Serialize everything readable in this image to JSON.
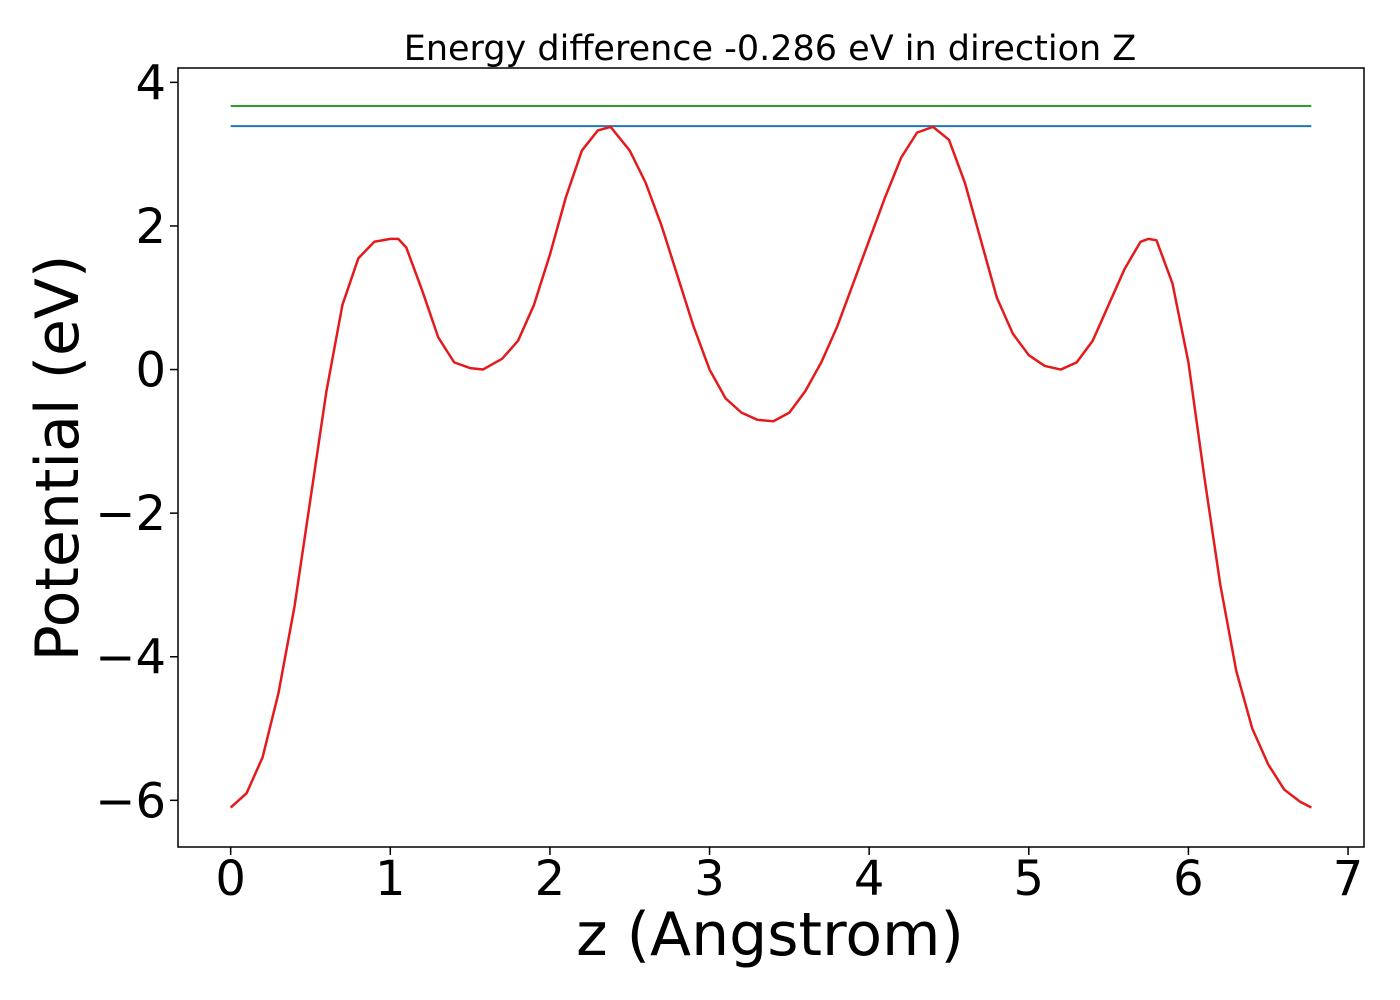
{
  "chart_data": {
    "type": "line",
    "title": "Energy difference -0.286 eV in direction Z",
    "xlabel": "z (Angstrom)",
    "ylabel": "Potential (eV)",
    "xlim": [
      -0.33,
      7.1
    ],
    "ylim": [
      -6.65,
      4.2
    ],
    "x_ticks": [
      0,
      1,
      2,
      3,
      4,
      5,
      6,
      7
    ],
    "y_ticks": [
      -6,
      -4,
      -2,
      0,
      2,
      4
    ],
    "x_tick_labels": [
      "0",
      "1",
      "2",
      "3",
      "4",
      "5",
      "6",
      "7"
    ],
    "y_tick_labels": [
      "−6",
      "−4",
      "−2",
      "0",
      "2",
      "4"
    ],
    "grid": false,
    "series": [
      {
        "color": "#2ca02c",
        "style": "horizontal",
        "x": [
          0,
          6.77
        ],
        "values": [
          3.67,
          3.67
        ]
      },
      {
        "color": "#1f77b4",
        "style": "horizontal",
        "x": [
          0,
          6.77
        ],
        "values": [
          3.39,
          3.39
        ]
      },
      {
        "color": "#e41a1c",
        "style": "curve",
        "x": [
          0.0,
          0.1,
          0.2,
          0.3,
          0.4,
          0.5,
          0.6,
          0.7,
          0.8,
          0.9,
          1.0,
          1.05,
          1.1,
          1.2,
          1.3,
          1.4,
          1.5,
          1.58,
          1.7,
          1.8,
          1.9,
          2.0,
          2.1,
          2.2,
          2.3,
          2.38,
          2.5,
          2.6,
          2.7,
          2.8,
          2.9,
          3.0,
          3.1,
          3.2,
          3.3,
          3.4,
          3.5,
          3.6,
          3.7,
          3.8,
          3.9,
          4.0,
          4.1,
          4.2,
          4.3,
          4.4,
          4.5,
          4.6,
          4.7,
          4.8,
          4.9,
          5.0,
          5.1,
          5.2,
          5.3,
          5.4,
          5.5,
          5.6,
          5.7,
          5.75,
          5.8,
          5.9,
          6.0,
          6.1,
          6.2,
          6.3,
          6.4,
          6.5,
          6.6,
          6.7,
          6.77
        ],
        "values": [
          -6.1,
          -5.9,
          -5.4,
          -4.5,
          -3.3,
          -1.8,
          -0.3,
          0.9,
          1.55,
          1.78,
          1.82,
          1.82,
          1.7,
          1.1,
          0.45,
          0.1,
          0.02,
          0.0,
          0.15,
          0.4,
          0.9,
          1.6,
          2.4,
          3.05,
          3.33,
          3.38,
          3.05,
          2.6,
          2.0,
          1.3,
          0.6,
          0.0,
          -0.4,
          -0.6,
          -0.7,
          -0.72,
          -0.6,
          -0.3,
          0.1,
          0.6,
          1.2,
          1.8,
          2.4,
          2.95,
          3.3,
          3.38,
          3.2,
          2.6,
          1.8,
          1.0,
          0.5,
          0.2,
          0.05,
          0.0,
          0.1,
          0.4,
          0.9,
          1.4,
          1.78,
          1.82,
          1.8,
          1.2,
          0.1,
          -1.5,
          -3.0,
          -4.2,
          -5.0,
          -5.5,
          -5.85,
          -6.02,
          -6.1
        ]
      }
    ]
  }
}
